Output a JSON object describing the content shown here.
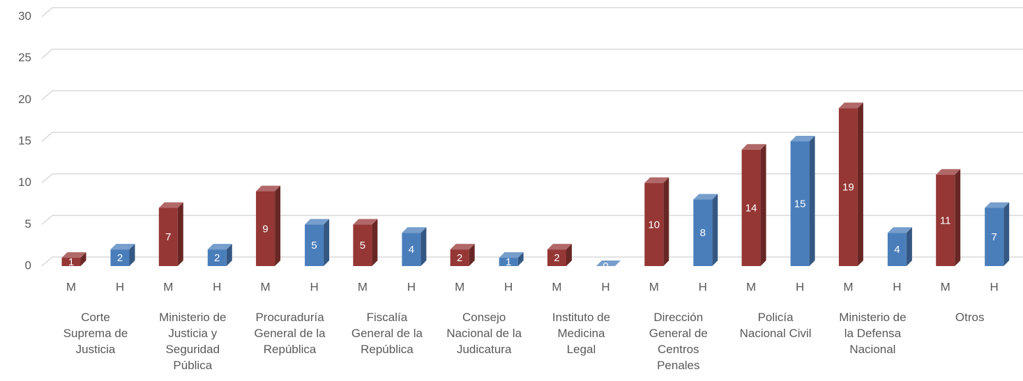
{
  "chart_data": {
    "type": "bar3d",
    "categories": [
      [
        "Corte",
        "Suprema de",
        "Justicia"
      ],
      [
        "Ministerio de",
        "Justicia y",
        "Seguridad",
        "Pública"
      ],
      [
        "Procuraduría",
        "General de la",
        "República"
      ],
      [
        "Fiscalía",
        "General de la",
        "República"
      ],
      [
        "Consejo",
        "Nacional de la",
        "Judicatura"
      ],
      [
        "Instituto de",
        "Medicina",
        "Legal"
      ],
      [
        "Dirección",
        "General de",
        "Centros",
        "Penales"
      ],
      [
        "Policía",
        "Nacional Civil"
      ],
      [
        "Ministerio de",
        "la Defensa",
        "Nacional"
      ],
      [
        "Otros"
      ]
    ],
    "series": [
      {
        "name": "M",
        "color": "#953735",
        "values": [
          1,
          7,
          9,
          5,
          2,
          2,
          10,
          14,
          19,
          11
        ]
      },
      {
        "name": "H",
        "color": "#4a7ebb",
        "values": [
          2,
          2,
          5,
          4,
          1,
          0,
          8,
          15,
          4,
          7
        ]
      }
    ],
    "ylim": [
      0,
      30
    ],
    "yticks": [
      0,
      5,
      10,
      15,
      20,
      25,
      30
    ],
    "grid": true,
    "data_labels": true
  }
}
